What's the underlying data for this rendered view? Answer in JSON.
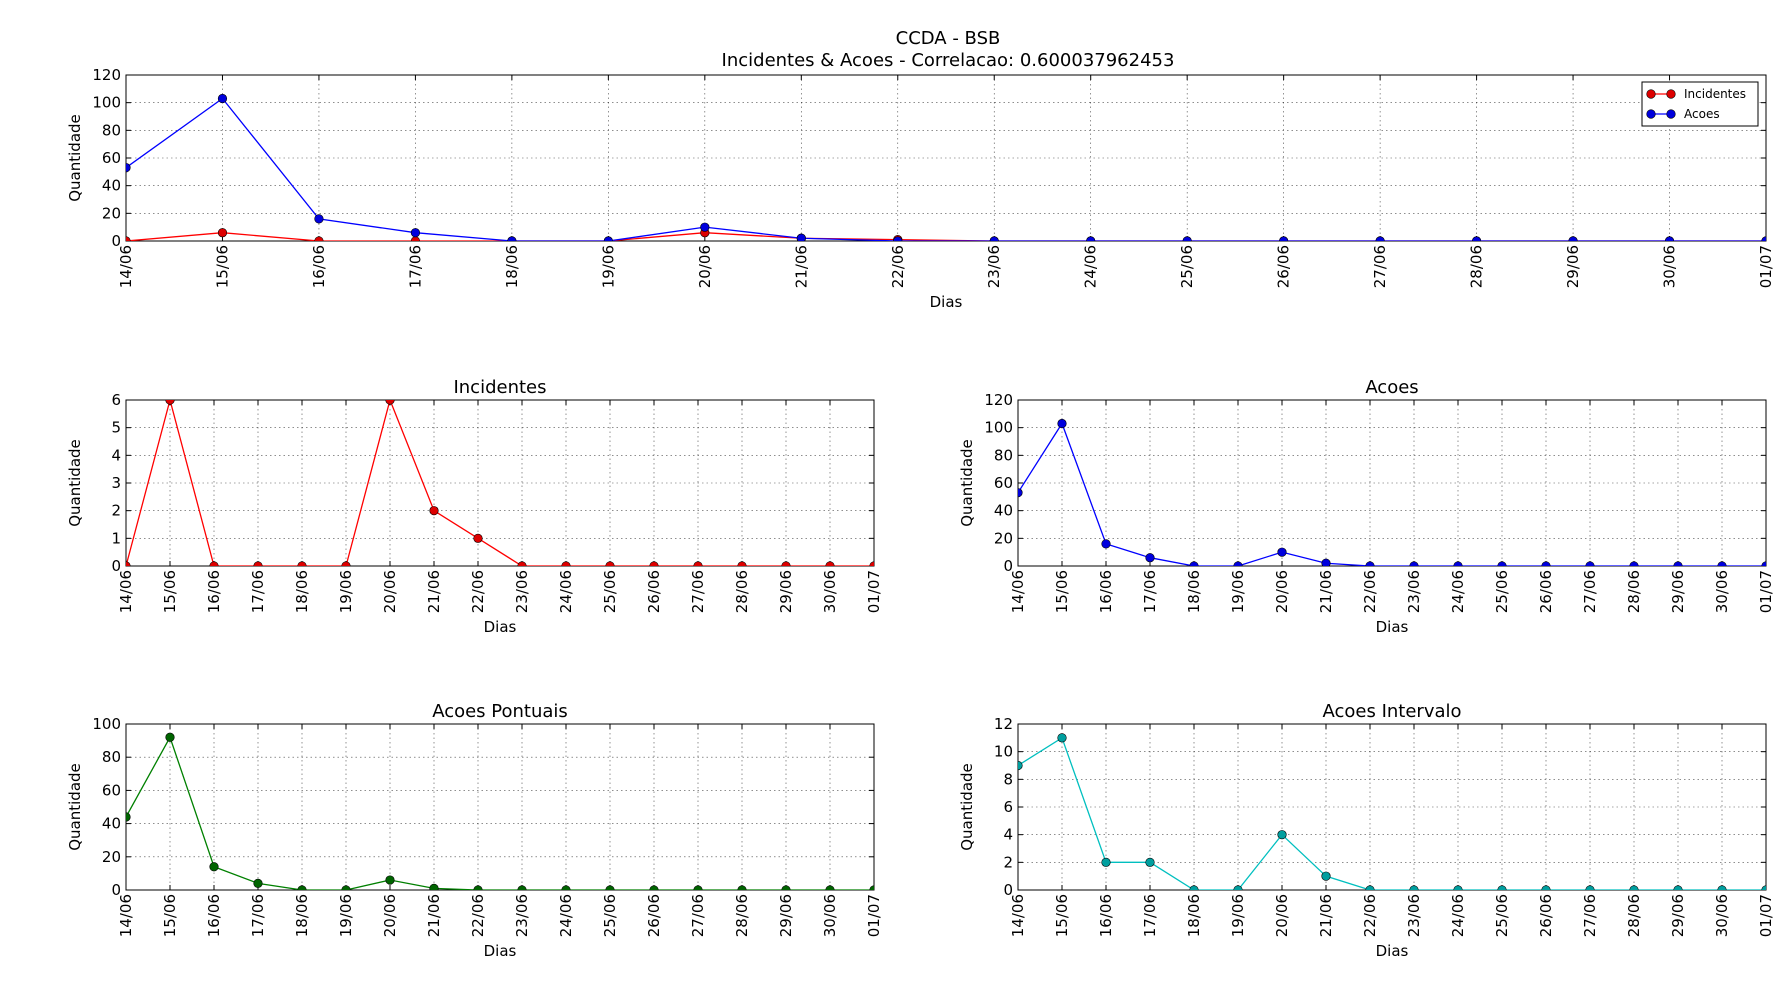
{
  "figure": {
    "title_line1": "CCDA - BSB",
    "title_line2": "Incidentes & Acoes - Correlacao: 0.600037962453"
  },
  "chart_data": [
    {
      "type": "line",
      "title": "",
      "xlabel": "Dias",
      "ylabel": "Quantidade",
      "categories": [
        "14/06",
        "15/06",
        "16/06",
        "17/06",
        "18/06",
        "19/06",
        "20/06",
        "21/06",
        "22/06",
        "23/06",
        "24/06",
        "25/06",
        "26/06",
        "27/06",
        "28/06",
        "29/06",
        "30/06",
        "01/07"
      ],
      "yticks": [
        0,
        20,
        40,
        60,
        80,
        100,
        120
      ],
      "ylim": [
        0,
        120
      ],
      "grid": true,
      "legend": "top-right",
      "series": [
        {
          "name": "Incidentes",
          "color": "#ff0000",
          "marker_fill": "#dd0000",
          "values": [
            0,
            6,
            0,
            0,
            0,
            0,
            6,
            2,
            1,
            0,
            0,
            0,
            0,
            0,
            0,
            0,
            0,
            0
          ]
        },
        {
          "name": "Acoes",
          "color": "#0000ff",
          "marker_fill": "#0000dd",
          "values": [
            53,
            103,
            16,
            6,
            0,
            0,
            10,
            2,
            0,
            0,
            0,
            0,
            0,
            0,
            0,
            0,
            0,
            0
          ]
        }
      ]
    },
    {
      "type": "line",
      "title": "Incidentes",
      "xlabel": "Dias",
      "ylabel": "Quantidade",
      "categories": [
        "14/06",
        "15/06",
        "16/06",
        "17/06",
        "18/06",
        "19/06",
        "20/06",
        "21/06",
        "22/06",
        "23/06",
        "24/06",
        "25/06",
        "26/06",
        "27/06",
        "28/06",
        "29/06",
        "30/06",
        "01/07"
      ],
      "yticks": [
        0,
        1,
        2,
        3,
        4,
        5,
        6
      ],
      "ylim": [
        0,
        6
      ],
      "grid": true,
      "series": [
        {
          "color": "#ff0000",
          "marker_fill": "#dd0000",
          "values": [
            0,
            6,
            0,
            0,
            0,
            0,
            6,
            2,
            1,
            0,
            0,
            0,
            0,
            0,
            0,
            0,
            0,
            0
          ]
        }
      ]
    },
    {
      "type": "line",
      "title": "Acoes",
      "xlabel": "Dias",
      "ylabel": "Quantidade",
      "categories": [
        "14/06",
        "15/06",
        "16/06",
        "17/06",
        "18/06",
        "19/06",
        "20/06",
        "21/06",
        "22/06",
        "23/06",
        "24/06",
        "25/06",
        "26/06",
        "27/06",
        "28/06",
        "29/06",
        "30/06",
        "01/07"
      ],
      "yticks": [
        0,
        20,
        40,
        60,
        80,
        100,
        120
      ],
      "ylim": [
        0,
        120
      ],
      "grid": true,
      "series": [
        {
          "color": "#0000ff",
          "marker_fill": "#0000dd",
          "values": [
            53,
            103,
            16,
            6,
            0,
            0,
            10,
            2,
            0,
            0,
            0,
            0,
            0,
            0,
            0,
            0,
            0,
            0
          ]
        }
      ]
    },
    {
      "type": "line",
      "title": "Acoes Pontuais",
      "xlabel": "Dias",
      "ylabel": "Quantidade",
      "categories": [
        "14/06",
        "15/06",
        "16/06",
        "17/06",
        "18/06",
        "19/06",
        "20/06",
        "21/06",
        "22/06",
        "23/06",
        "24/06",
        "25/06",
        "26/06",
        "27/06",
        "28/06",
        "29/06",
        "30/06",
        "01/07"
      ],
      "yticks": [
        0,
        20,
        40,
        60,
        80,
        100
      ],
      "ylim": [
        0,
        100
      ],
      "grid": true,
      "series": [
        {
          "color": "#008000",
          "marker_fill": "#006400",
          "values": [
            44,
            92,
            14,
            4,
            0,
            0,
            6,
            1,
            0,
            0,
            0,
            0,
            0,
            0,
            0,
            0,
            0,
            0
          ]
        }
      ]
    },
    {
      "type": "line",
      "title": "Acoes Intervalo",
      "xlabel": "Dias",
      "ylabel": "Quantidade",
      "categories": [
        "14/06",
        "15/06",
        "16/06",
        "17/06",
        "18/06",
        "19/06",
        "20/06",
        "21/06",
        "22/06",
        "23/06",
        "24/06",
        "25/06",
        "26/06",
        "27/06",
        "28/06",
        "29/06",
        "30/06",
        "01/07"
      ],
      "yticks": [
        0,
        2,
        4,
        6,
        8,
        10,
        12
      ],
      "ylim": [
        0,
        12
      ],
      "grid": true,
      "series": [
        {
          "color": "#00bfbf",
          "marker_fill": "#009f9f",
          "values": [
            9,
            11,
            2,
            2,
            0,
            0,
            4,
            1,
            0,
            0,
            0,
            0,
            0,
            0,
            0,
            0,
            0,
            0
          ]
        }
      ]
    }
  ]
}
